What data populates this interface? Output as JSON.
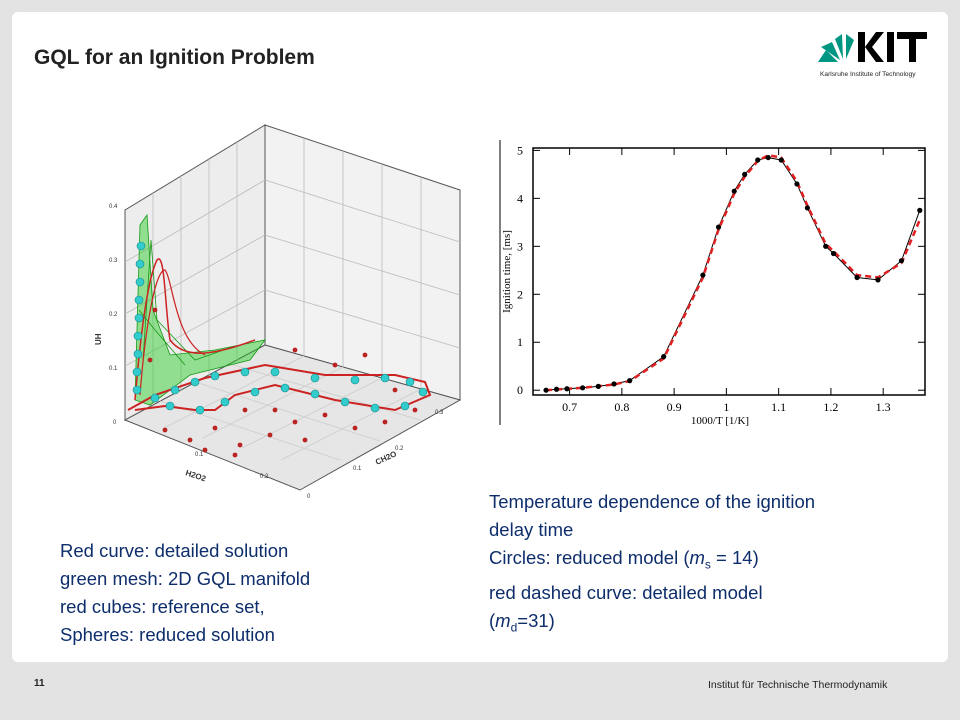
{
  "slide": {
    "title": "GQL for an Ignition Problem",
    "page_number": "11",
    "footer": "Institut für Technische Thermodynamik",
    "logo": {
      "text": "KIT",
      "subtitle": "Karlsruhe Institute of Technology",
      "color": "#009682"
    },
    "left_caption": [
      "Red curve: detailed solution",
      "green mesh: 2D GQL manifold",
      "red cubes: reference set,",
      "Spheres: reduced solution"
    ],
    "right_caption": {
      "line1": "Temperature dependence of the ignition",
      "line2": "delay time",
      "line3_pre": "Circles: reduced model (",
      "line3_var": "m",
      "line3_sub": "s",
      "line3_post": " = 14)",
      "line4": "red dashed curve: detailed model",
      "line5_pre": "(",
      "line5_var": "m",
      "line5_sub": "d",
      "line5_post": "=31)"
    },
    "text_color": "#0d2d6b"
  },
  "figure3d": {
    "axis_labels": {
      "vertical": "UH",
      "front": "H2O2",
      "right": "CH2O"
    },
    "vertical_ticks": [
      "0",
      "0.1",
      "0.2",
      "0.3",
      "0.4"
    ],
    "front_ticks": [
      "0",
      "0.1",
      "0.2"
    ],
    "right_ticks": [
      "0",
      "0.1",
      "0.2",
      "0.3"
    ],
    "colors": {
      "curve": "#cc2222",
      "mesh": "#22cc22",
      "spheres": "#22cccc",
      "cubes": "#bb2222"
    }
  },
  "chart_data": {
    "type": "line",
    "xlabel": "1000/T   [1/K]",
    "ylabel": "Ignition time, [ms]",
    "xlim": [
      0.63,
      1.38
    ],
    "ylim": [
      -0.1,
      5.05
    ],
    "xticks": [
      "0.7",
      "0.8",
      "0.9",
      "1",
      "1.1",
      "1.2",
      "1.3"
    ],
    "yticks": [
      "0",
      "1",
      "2",
      "3",
      "4",
      "5"
    ],
    "series": [
      {
        "style": "circles-solid-black",
        "color": "#000000",
        "x": [
          0.655,
          0.675,
          0.695,
          0.725,
          0.755,
          0.785,
          0.815,
          0.88,
          0.955,
          0.985,
          1.015,
          1.035,
          1.06,
          1.08,
          1.105,
          1.135,
          1.155,
          1.19,
          1.205,
          1.25,
          1.29,
          1.335,
          1.37
        ],
        "y": [
          0.0,
          0.02,
          0.03,
          0.05,
          0.08,
          0.13,
          0.2,
          0.7,
          2.4,
          3.4,
          4.15,
          4.5,
          4.8,
          4.85,
          4.8,
          4.3,
          3.8,
          3.0,
          2.85,
          2.35,
          2.3,
          2.7,
          3.75
        ]
      },
      {
        "style": "dashed-red",
        "color": "#e02020",
        "x": [
          0.655,
          0.725,
          0.785,
          0.815,
          0.88,
          0.955,
          0.985,
          1.015,
          1.035,
          1.06,
          1.08,
          1.105,
          1.135,
          1.155,
          1.19,
          1.205,
          1.25,
          1.29,
          1.335,
          1.37
        ],
        "y": [
          0.0,
          0.05,
          0.12,
          0.19,
          0.66,
          2.35,
          3.35,
          4.1,
          4.45,
          4.78,
          4.9,
          4.85,
          4.35,
          3.85,
          3.05,
          2.9,
          2.4,
          2.35,
          2.65,
          3.55
        ]
      }
    ]
  }
}
